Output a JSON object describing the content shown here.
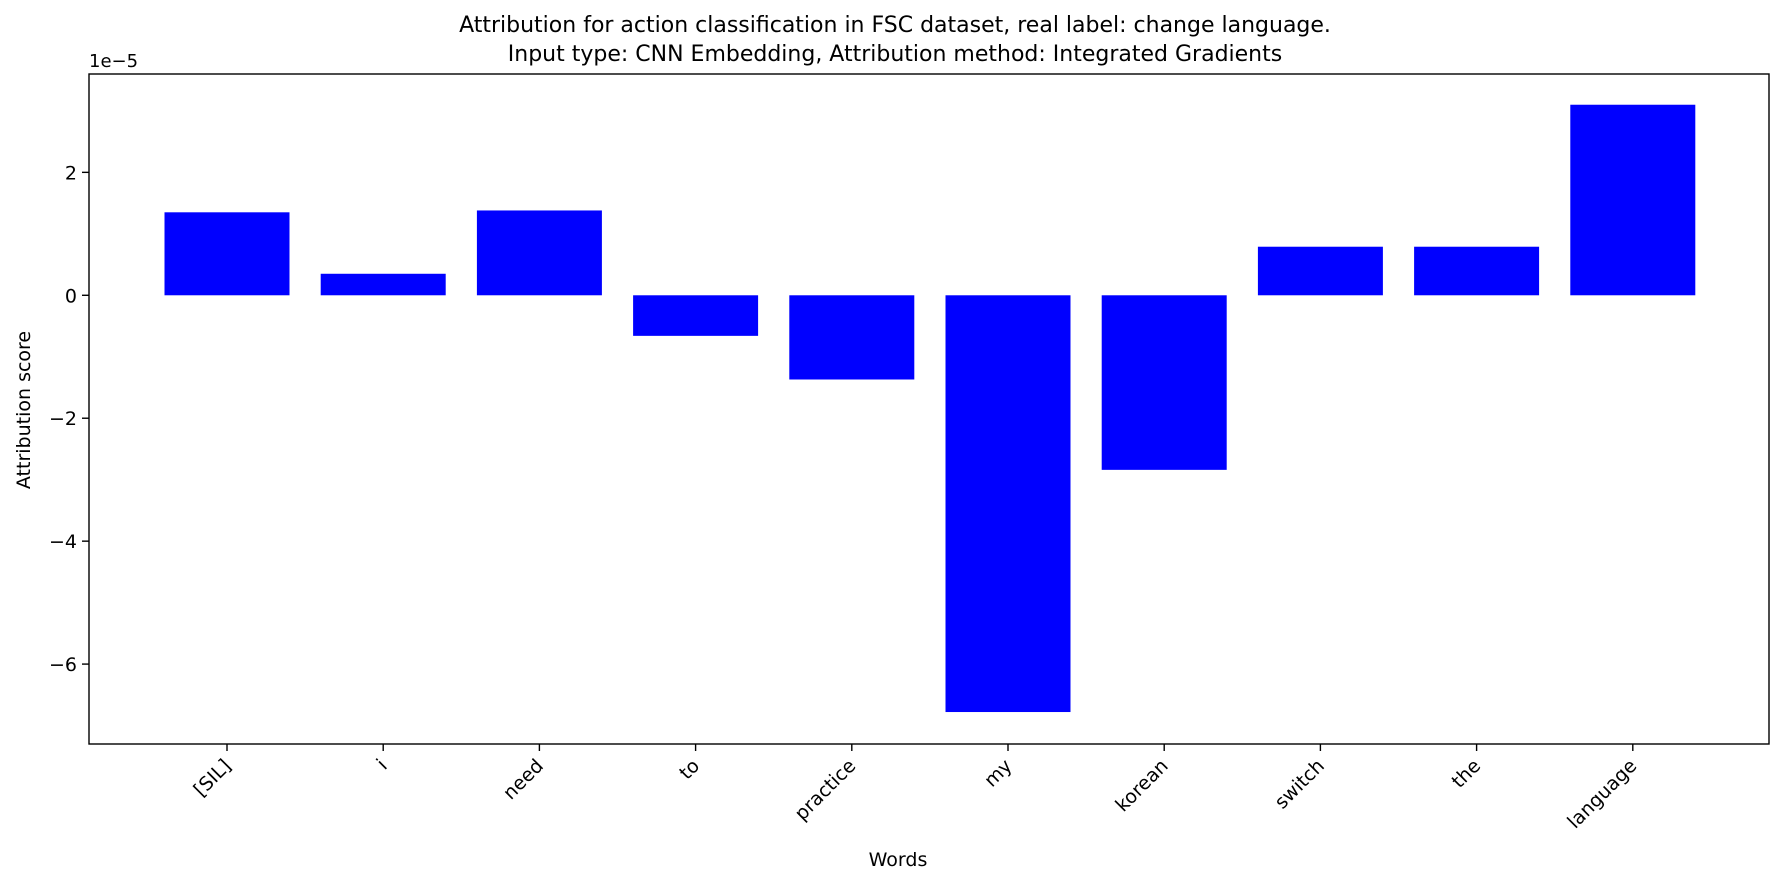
{
  "chart_data": {
    "type": "bar",
    "title": "Attribution for action classification in FSC dataset, real label: change language.",
    "subtitle": "Input type: CNN Embedding, Attribution method: Integrated Gradients",
    "xlabel": "Words",
    "ylabel": "Attribution score",
    "y_multiplier": "1e−5",
    "categories": [
      "[SIL]",
      "i",
      "need",
      "to",
      "practice",
      "my",
      "korean",
      "switch",
      "the",
      "language"
    ],
    "values": [
      1.35,
      0.35,
      1.38,
      -0.66,
      -1.37,
      -6.78,
      -2.84,
      0.79,
      0.79,
      3.1
    ],
    "ylim": [
      -7.3,
      3.6
    ],
    "yticks": [
      2,
      0,
      -2,
      -4,
      -6
    ],
    "ytick_labels": [
      "2",
      "0",
      "−2",
      "−4",
      "−6"
    ],
    "bar_color": "#0000ff",
    "grid": false
  }
}
